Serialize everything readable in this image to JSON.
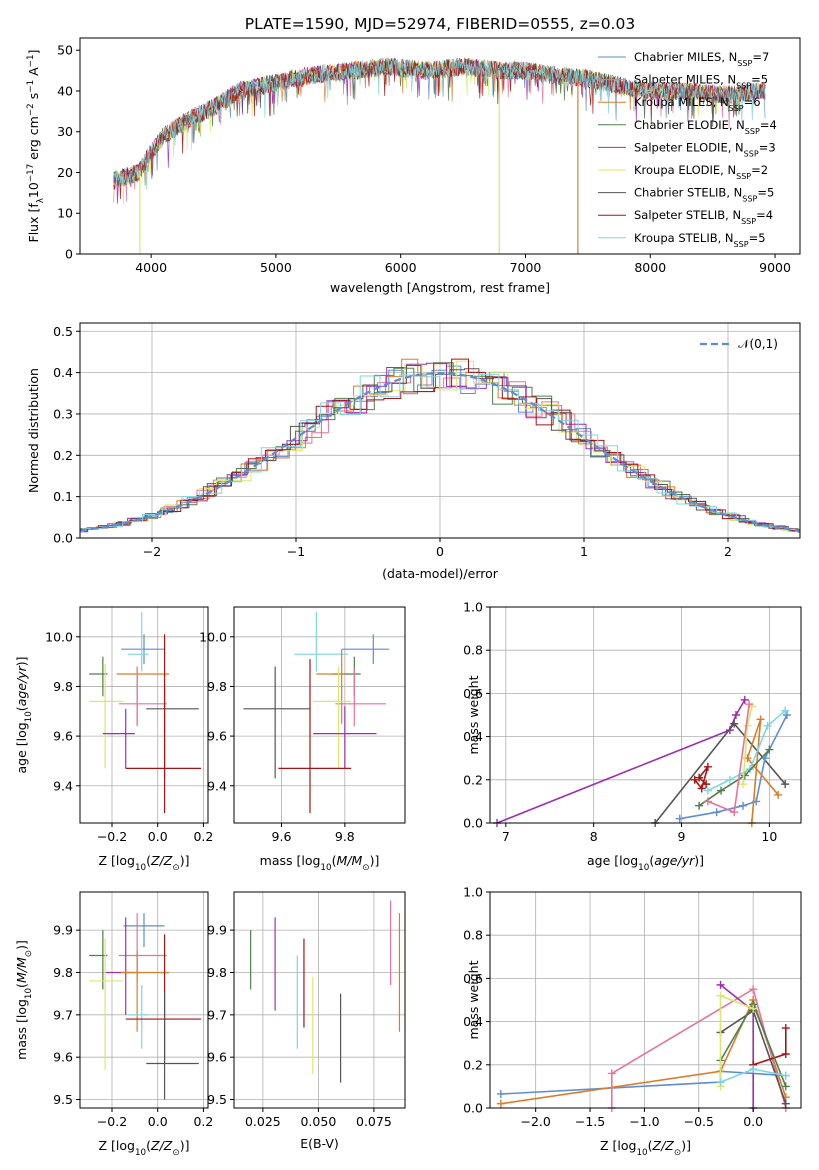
{
  "title": "PLATE=1590, MJD=52974, FIBERID=0555, z=0.03",
  "colors": {
    "blue": "#5f8dd3",
    "pink": "#e8739a",
    "orange": "#d97d2b",
    "green": "#4f7f4f",
    "purple": "#9c2fb0",
    "yellow": "#d9e86a",
    "gray": "#555555",
    "red": "#a41515",
    "cyan": "#7fd6e0",
    "grid": "#b0b0b0"
  },
  "chart_data": [
    {
      "id": "spectrum",
      "type": "line",
      "xlabel": "wavelength [Angstrom, rest frame]",
      "ylabel": "Flux [f_λ10^-17 erg cm^-2 s^-1 A^-1]",
      "xlim": [
        3430,
        9200
      ],
      "ylim": [
        0,
        53
      ],
      "xticks": [
        4000,
        5000,
        6000,
        7000,
        8000,
        9000
      ],
      "yticks": [
        0,
        10,
        20,
        30,
        40,
        50
      ],
      "grid": false,
      "legend_position": "top-right",
      "series": [
        {
          "name": "Chabrier MILES, N_SSP=7",
          "color": "blue"
        },
        {
          "name": "Salpeter MILES, N_SSP=5",
          "color": "pink"
        },
        {
          "name": "Kroupa MILES, N_SSP=6",
          "color": "orange"
        },
        {
          "name": "Chabrier ELODIE, N_SSP=4",
          "color": "green"
        },
        {
          "name": "Salpeter ELODIE, N_SSP=3",
          "color": "purple"
        },
        {
          "name": "Kroupa ELODIE, N_SSP=2",
          "color": "yellow"
        },
        {
          "name": "Chabrier STELIB, N_SSP=5",
          "color": "gray"
        },
        {
          "name": "Salpeter STELIB, N_SSP=4",
          "color": "red"
        },
        {
          "name": "Kroupa STELIB, N_SSP=5",
          "color": "cyan"
        }
      ],
      "continuum": {
        "x": [
          3700,
          3900,
          4000,
          4100,
          4300,
          4500,
          4700,
          5000,
          5300,
          5600,
          5900,
          6200,
          6500,
          6800,
          7000,
          7200,
          7500,
          7800,
          8000,
          8300,
          8600,
          8900
        ],
        "y": [
          18,
          20,
          25,
          29,
          33,
          36,
          40,
          42,
          44,
          45,
          46,
          45,
          46,
          45,
          45,
          44,
          43,
          41,
          40,
          40,
          39,
          40
        ]
      },
      "drops": [
        {
          "x": 3910,
          "color": "yellow"
        },
        {
          "x": 6790,
          "color": "yellow"
        },
        {
          "x": 7420,
          "color": "orange"
        }
      ]
    },
    {
      "id": "residual-histogram",
      "type": "histogram",
      "xlabel": "(data-model)/error",
      "ylabel": "Normed distribution",
      "xlim": [
        -2.5,
        2.5
      ],
      "ylim": [
        0,
        0.52
      ],
      "xticks": [
        -2,
        -1,
        0,
        1,
        2
      ],
      "yticks": [
        0.0,
        0.1,
        0.2,
        0.3,
        0.4,
        0.5
      ],
      "grid": true,
      "legend_position": "top-right",
      "reference_curve": {
        "name": "𝒩(0,1)",
        "color": "blue",
        "style": "dashed"
      }
    },
    {
      "id": "age-vs-Z",
      "type": "errorbar",
      "xlabel": "Z [log10(Z/Z☉)]",
      "ylabel": "age  [log10(age/yr)]",
      "xlim": [
        -0.34,
        0.22
      ],
      "ylim": [
        9.25,
        10.12
      ],
      "xticks": [
        -0.2,
        0.0,
        0.2
      ],
      "yticks": [
        9.4,
        9.6,
        9.8,
        10.0
      ],
      "grid": true,
      "points": [
        {
          "color": "blue",
          "x": -0.06,
          "y": 9.95,
          "xerr": [
            0.1,
            0.09
          ],
          "yerr": [
            0.06,
            0.06
          ]
        },
        {
          "color": "cyan",
          "x": -0.07,
          "y": 9.93,
          "xerr": [
            0.06,
            0.03
          ],
          "yerr": [
            0.07,
            0.17
          ]
        },
        {
          "color": "gray",
          "x": 0.03,
          "y": 9.71,
          "xerr": [
            0.08,
            0.15
          ],
          "yerr": [
            0.28,
            0.1
          ]
        },
        {
          "color": "green",
          "x": -0.24,
          "y": 9.85,
          "xerr": [
            0.06,
            0.02
          ],
          "yerr": [
            0.09,
            0.07
          ]
        },
        {
          "color": "orange",
          "x": -0.09,
          "y": 9.85,
          "xerr": [
            0.09,
            0.14
          ],
          "yerr": [
            0.2,
            0.03
          ]
        },
        {
          "color": "pink",
          "x": -0.09,
          "y": 9.73,
          "xerr": [
            0.08,
            0.13
          ],
          "yerr": [
            0.09,
            0.14
          ]
        },
        {
          "color": "yellow",
          "x": -0.23,
          "y": 9.74,
          "xerr": [
            0.07,
            0.08
          ],
          "yerr": [
            0.27,
            0.15
          ]
        },
        {
          "color": "purple",
          "x": -0.14,
          "y": 9.61,
          "xerr": [
            0.1,
            0.04
          ],
          "yerr": [
            0.14,
            0.1
          ]
        },
        {
          "color": "red",
          "x": 0.03,
          "y": 9.47,
          "xerr": [
            0.17,
            0.16
          ],
          "yerr": [
            0.18,
            0.54
          ]
        }
      ]
    },
    {
      "id": "age-vs-mass",
      "type": "errorbar",
      "xlabel": "mass [log10(M/M☉)]",
      "ylabel": "",
      "xlim": [
        9.45,
        9.99
      ],
      "ylim": [
        9.25,
        10.12
      ],
      "xticks": [
        9.6,
        9.8
      ],
      "yticks": [
        9.4,
        9.6,
        9.8,
        10.0
      ],
      "grid": true,
      "points": [
        {
          "color": "blue",
          "x": 9.89,
          "y": 9.95,
          "xerr": [
            0.1,
            0.05
          ],
          "yerr": [
            0.06,
            0.06
          ]
        },
        {
          "color": "cyan",
          "x": 9.71,
          "y": 9.93,
          "xerr": [
            0.07,
            0.1
          ],
          "yerr": [
            0.07,
            0.17
          ]
        },
        {
          "color": "gray",
          "x": 9.58,
          "y": 9.71,
          "xerr": [
            0.1,
            0.11
          ],
          "yerr": [
            0.28,
            0.17
          ]
        },
        {
          "color": "green",
          "x": 9.83,
          "y": 9.85,
          "xerr": [
            0.07,
            0.02
          ],
          "yerr": [
            0.09,
            0.07
          ]
        },
        {
          "color": "orange",
          "x": 9.79,
          "y": 9.85,
          "xerr": [
            0.08,
            0.01
          ],
          "yerr": [
            0.2,
            0.1
          ]
        },
        {
          "color": "pink",
          "x": 9.83,
          "y": 9.73,
          "xerr": [
            0.06,
            0.1
          ],
          "yerr": [
            0.09,
            0.14
          ]
        },
        {
          "color": "yellow",
          "x": 9.78,
          "y": 9.74,
          "xerr": [
            0.08,
            0.04
          ],
          "yerr": [
            0.27,
            0.14
          ]
        },
        {
          "color": "purple",
          "x": 9.8,
          "y": 9.61,
          "xerr": [
            0.1,
            0.1
          ],
          "yerr": [
            0.14,
            0.11
          ]
        },
        {
          "color": "red",
          "x": 9.69,
          "y": 9.47,
          "xerr": [
            0.1,
            0.13
          ],
          "yerr": [
            0.18,
            0.44
          ]
        }
      ]
    },
    {
      "id": "mass-weight-vs-age",
      "type": "line",
      "xlabel": "age  [log10(age/yr)]",
      "ylabel": "mass weight",
      "xlim": [
        6.82,
        10.36
      ],
      "ylim": [
        0,
        1.0
      ],
      "xticks": [
        7,
        8,
        9,
        10
      ],
      "yticks": [
        0.0,
        0.2,
        0.4,
        0.6,
        0.8,
        1.0
      ],
      "grid": true,
      "series": [
        {
          "color": "purple",
          "x": [
            6.9,
            9.55,
            9.62,
            9.72
          ],
          "y": [
            0.0,
            0.43,
            0.5,
            0.57
          ]
        },
        {
          "color": "gray",
          "x": [
            8.7,
            9.6,
            10.18
          ],
          "y": [
            0.0,
            0.46,
            0.18
          ]
        },
        {
          "color": "red",
          "x": [
            9.15,
            9.23,
            9.3,
            9.2,
            9.28
          ],
          "y": [
            0.2,
            0.16,
            0.26,
            0.21,
            0.18
          ]
        },
        {
          "color": "blue",
          "x": [
            8.98,
            9.4,
            9.7,
            9.85,
            9.95,
            10.2
          ],
          "y": [
            0.02,
            0.05,
            0.08,
            0.1,
            0.3,
            0.5
          ]
        },
        {
          "color": "orange",
          "x": [
            9.8,
            9.9,
            9.75,
            10.1
          ],
          "y": [
            0.0,
            0.48,
            0.3,
            0.13
          ]
        },
        {
          "color": "cyan",
          "x": [
            9.3,
            9.55,
            9.78,
            9.98,
            10.18
          ],
          "y": [
            0.15,
            0.2,
            0.25,
            0.45,
            0.52
          ]
        },
        {
          "color": "green",
          "x": [
            9.2,
            9.45,
            9.72,
            10.0
          ],
          "y": [
            0.08,
            0.15,
            0.22,
            0.34
          ]
        },
        {
          "color": "yellow",
          "x": [
            9.7,
            9.75,
            9.8
          ],
          "y": [
            0.18,
            0.45,
            0.54
          ]
        },
        {
          "color": "pink",
          "x": [
            9.3,
            9.6,
            9.77
          ],
          "y": [
            0.1,
            0.05,
            0.55
          ]
        }
      ]
    },
    {
      "id": "mass-vs-Z",
      "type": "errorbar",
      "xlabel": "Z [log10(Z/Z☉)]",
      "ylabel": "mass [log10(M/M☉)]",
      "xlim": [
        -0.34,
        0.22
      ],
      "ylim": [
        9.48,
        9.99
      ],
      "xticks": [
        -0.2,
        0.0,
        0.2
      ],
      "yticks": [
        9.5,
        9.6,
        9.7,
        9.8,
        9.9
      ],
      "grid": true,
      "points": [
        {
          "color": "blue",
          "x": -0.06,
          "y": 9.91,
          "xerr": [
            0.09,
            0.09
          ],
          "yerr": [
            0.05,
            0.03
          ]
        },
        {
          "color": "pink",
          "x": -0.09,
          "y": 9.84,
          "xerr": [
            0.08,
            0.13
          ],
          "yerr": [
            0.06,
            0.1
          ]
        },
        {
          "color": "green",
          "x": -0.24,
          "y": 9.84,
          "xerr": [
            0.06,
            0.02
          ],
          "yerr": [
            0.08,
            0.06
          ]
        },
        {
          "color": "purple",
          "x": -0.14,
          "y": 9.8,
          "xerr": [
            0.09,
            0.04
          ],
          "yerr": [
            0.1,
            0.13
          ]
        },
        {
          "color": "orange",
          "x": -0.09,
          "y": 9.8,
          "xerr": [
            0.07,
            0.14
          ],
          "yerr": [
            0.14,
            0.05
          ]
        },
        {
          "color": "yellow",
          "x": -0.23,
          "y": 9.78,
          "xerr": [
            0.07,
            0.08
          ],
          "yerr": [
            0.21,
            0.1
          ]
        },
        {
          "color": "cyan",
          "x": -0.07,
          "y": 9.7,
          "xerr": [
            0.06,
            0.03
          ],
          "yerr": [
            0.08,
            0.07
          ]
        },
        {
          "color": "red",
          "x": 0.03,
          "y": 9.69,
          "xerr": [
            0.17,
            0.16
          ],
          "yerr": [
            0.1,
            0.2
          ]
        },
        {
          "color": "gray",
          "x": 0.03,
          "y": 9.585,
          "xerr": [
            0.08,
            0.15
          ],
          "yerr": [
            0.085,
            0.17
          ]
        }
      ]
    },
    {
      "id": "mass-vs-EBV",
      "type": "errorbar",
      "xlabel": "E(B-V)",
      "ylabel": "",
      "xlim": [
        0.012,
        0.089
      ],
      "ylim": [
        9.48,
        9.99
      ],
      "xticks": [
        0.025,
        0.05,
        0.075
      ],
      "xtick_labels": [
        "0.025",
        "0.050",
        "0.075"
      ],
      "yticks": [
        9.5,
        9.6,
        9.7,
        9.8,
        9.9
      ],
      "grid": true,
      "points": [
        {
          "color": "green",
          "x": 0.0195,
          "y": 9.83,
          "yerr": [
            0.07,
            0.07
          ]
        },
        {
          "color": "purple",
          "x": 0.0305,
          "y": 9.8,
          "yerr": [
            0.09,
            0.13
          ]
        },
        {
          "color": "cyan",
          "x": 0.0405,
          "y": 9.73,
          "yerr": [
            0.11,
            0.11
          ]
        },
        {
          "color": "red",
          "x": 0.0435,
          "y": 9.77,
          "yerr": [
            0.1,
            0.11
          ]
        },
        {
          "color": "yellow",
          "x": 0.0475,
          "y": 9.69,
          "yerr": [
            0.13,
            0.1
          ]
        },
        {
          "color": "gray",
          "x": 0.06,
          "y": 9.65,
          "yerr": [
            0.11,
            0.1
          ]
        },
        {
          "color": "pink",
          "x": 0.0825,
          "y": 9.87,
          "yerr": [
            0.1,
            0.1
          ]
        },
        {
          "color": "orange",
          "x": 0.0865,
          "y": 9.8,
          "yerr": [
            0.14,
            0.14
          ]
        }
      ]
    },
    {
      "id": "mass-weight-vs-Z",
      "type": "line",
      "xlabel": "Z [log10(Z/Z☉)]",
      "ylabel": "mass weight",
      "xlim": [
        -2.42,
        0.44
      ],
      "ylim": [
        0,
        1.0
      ],
      "xticks": [
        -2.0,
        -1.5,
        -1.0,
        -0.5,
        0.0
      ],
      "yticks": [
        0.0,
        0.2,
        0.4,
        0.6,
        0.8,
        1.0
      ],
      "grid": true,
      "series": [
        {
          "color": "blue",
          "x": [
            -2.32,
            -0.3,
            -0.3,
            0.3
          ],
          "y": [
            0.065,
            0.12,
            0.17,
            0.15
          ]
        },
        {
          "color": "orange",
          "x": [
            -2.32,
            -0.3,
            0.0,
            0.3
          ],
          "y": [
            0.02,
            0.17,
            0.5,
            0.05
          ]
        },
        {
          "color": "pink",
          "x": [
            -1.3,
            -1.3,
            0.0,
            0.3
          ],
          "y": [
            0.0,
            0.16,
            0.55,
            0.0
          ]
        },
        {
          "color": "purple",
          "x": [
            -0.3,
            0.0,
            0.0
          ],
          "y": [
            0.57,
            0.45,
            0.0
          ]
        },
        {
          "color": "gray",
          "x": [
            -0.3,
            0.0,
            0.3
          ],
          "y": [
            0.35,
            0.45,
            0.02
          ]
        },
        {
          "color": "red",
          "x": [
            0.0,
            0.3,
            0.3
          ],
          "y": [
            0.2,
            0.25,
            0.37
          ]
        },
        {
          "color": "green",
          "x": [
            -0.3,
            0.0,
            0.3
          ],
          "y": [
            0.22,
            0.48,
            0.1
          ]
        },
        {
          "color": "yellow",
          "x": [
            -0.3,
            -0.3,
            0.0
          ],
          "y": [
            0.1,
            0.52,
            0.46
          ]
        },
        {
          "color": "cyan",
          "x": [
            -0.3,
            0.0,
            0.3
          ],
          "y": [
            0.12,
            0.18,
            0.15
          ]
        }
      ]
    }
  ]
}
